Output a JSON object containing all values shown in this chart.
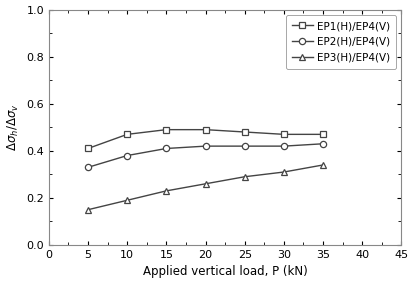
{
  "x": [
    5,
    10,
    15,
    20,
    25,
    30,
    35
  ],
  "EP1": [
    0.41,
    0.47,
    0.49,
    0.49,
    0.48,
    0.47,
    0.47
  ],
  "EP2": [
    0.33,
    0.38,
    0.41,
    0.42,
    0.42,
    0.42,
    0.43
  ],
  "EP3": [
    0.15,
    0.19,
    0.23,
    0.26,
    0.29,
    0.31,
    0.34
  ],
  "xlabel": "Applied vertical load, P (kN)",
  "ylabel": "Δσ$_h$/Δσ$_v$",
  "legend": [
    "EP1(H)/EP4(V)",
    "EP2(H)/EP4(V)",
    "EP3(H)/EP4(V)"
  ],
  "xlim": [
    0,
    45
  ],
  "ylim": [
    0.0,
    1.0
  ],
  "xticks": [
    0,
    5,
    10,
    15,
    20,
    25,
    30,
    35,
    40,
    45
  ],
  "yticks": [
    0.0,
    0.2,
    0.4,
    0.6,
    0.8,
    1.0
  ],
  "line_color": "#444444",
  "bg_color": "#ffffff",
  "xlabel_fontsize": 8.5,
  "ylabel_fontsize": 8.5,
  "legend_fontsize": 7.5,
  "tick_fontsize": 8
}
